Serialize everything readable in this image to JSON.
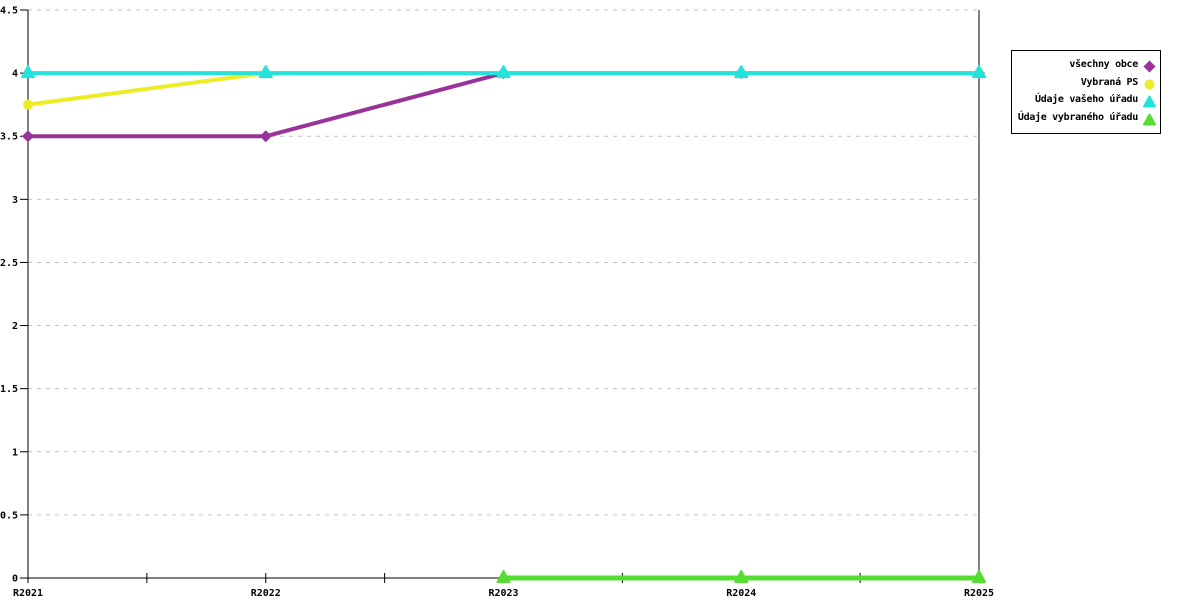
{
  "chart_data": {
    "type": "line",
    "title": "",
    "xlabel": "",
    "ylabel": "",
    "categories": [
      "R2021",
      "R2022",
      "R2023",
      "R2024",
      "R2025"
    ],
    "series": [
      {
        "name": "všechny obce",
        "color": "#993399",
        "marker": "diamond",
        "values": [
          3.5,
          3.5,
          4,
          4,
          4
        ]
      },
      {
        "name": "Vybraná PS",
        "color": "#EDED26",
        "marker": "circle",
        "values": [
          3.75,
          4,
          4,
          4,
          4
        ]
      },
      {
        "name": "Údaje vašeho úřadu",
        "color": "#25E2DB",
        "marker": "triangle",
        "values": [
          4,
          4,
          4,
          4,
          4
        ]
      },
      {
        "name": "Údaje vybraného úřadu",
        "color": "#55DD33",
        "marker": "triangle",
        "values": [
          null,
          null,
          0,
          0,
          0
        ]
      }
    ],
    "ylim": [
      0,
      4.5
    ],
    "ytick_step": 0.5,
    "ytick_labels": [
      "0",
      "0.5",
      "1",
      "1.5",
      "2",
      "2.5",
      "3",
      "3.5",
      "4",
      "4.5"
    ],
    "grid": "horizontal-dashed",
    "legend_position": "outside-right"
  },
  "colors": {
    "background": "#ffffff",
    "axis": "#000000",
    "grid": "#c2c2c2",
    "legend_border": "#000000",
    "text": "#000000"
  }
}
